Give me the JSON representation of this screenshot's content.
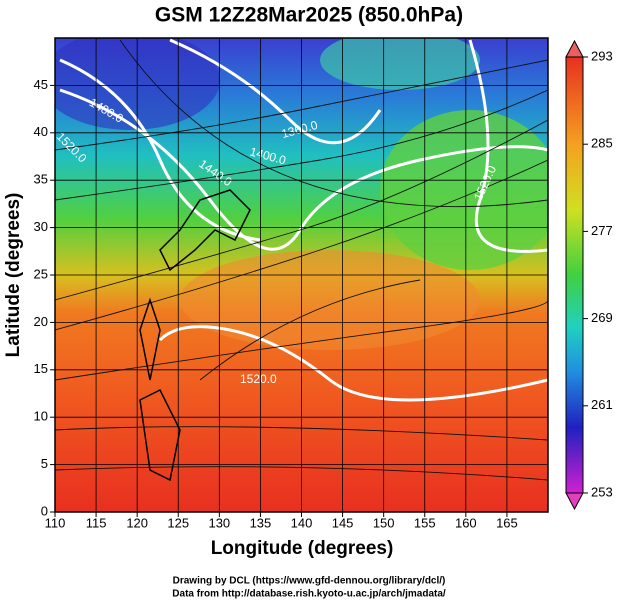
{
  "title": "GSM 12Z28Mar2025 (850.0hPa)",
  "map": {
    "xlabel": "Longitude (degrees)",
    "ylabel": "Latitude  (degrees)",
    "xlim": [
      110,
      170
    ],
    "ylim": [
      0,
      50
    ],
    "xticks": [
      110,
      115,
      120,
      125,
      130,
      135,
      140,
      145,
      150,
      155,
      160,
      165
    ],
    "yticks": [
      0,
      5,
      10,
      15,
      20,
      25,
      30,
      35,
      40,
      45
    ],
    "grid": true,
    "contour_labels": [
      "1480.0",
      "1520.0",
      "1360.0",
      "1400.0",
      "1440.0",
      "1520.0",
      "1520.0"
    ]
  },
  "colorbar": {
    "lim": [
      253,
      293
    ],
    "ticks": [
      253,
      261,
      269,
      277,
      285,
      293
    ]
  },
  "footer": [
    "Drawing by DCL (https://www.gfd-dennou.org/library/dcl/)",
    "Data from http://database.rish.kyoto-u.ac.jp/arch/jmadata/"
  ]
}
